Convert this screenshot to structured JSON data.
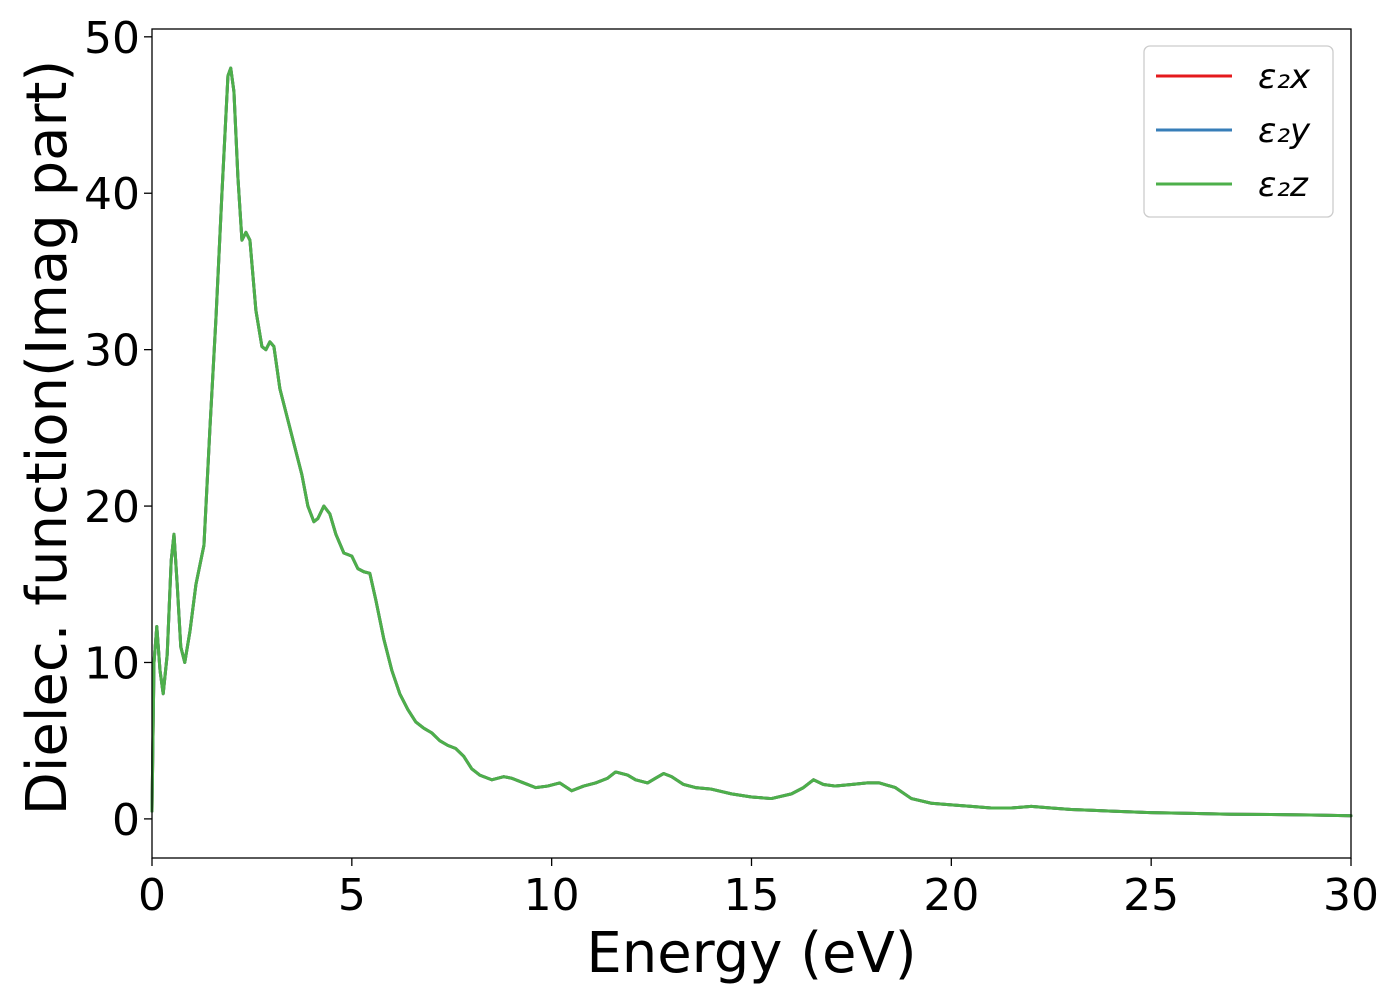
{
  "chart_data": {
    "type": "line",
    "title": "",
    "xlabel": "Energy (eV)",
    "ylabel": "Dielec. function(Imag part)",
    "xlim": [
      0,
      30
    ],
    "ylim": [
      -2.5,
      50.5
    ],
    "xticks": [
      0,
      5,
      10,
      15,
      20,
      25,
      30
    ],
    "yticks": [
      0,
      10,
      20,
      30,
      40,
      50
    ],
    "grid": false,
    "legend_position": "top-right",
    "series": [
      {
        "name": "ε₂x",
        "color": "#e41a1c",
        "points": "shared"
      },
      {
        "name": "ε₂y",
        "color": "#377eb8",
        "points": "shared"
      },
      {
        "name": "ε₂z",
        "color": "#4daf4a",
        "points": "shared"
      }
    ],
    "points": [
      [
        0.0,
        0.5
      ],
      [
        0.05,
        10.0
      ],
      [
        0.12,
        12.3
      ],
      [
        0.2,
        9.5
      ],
      [
        0.28,
        8.0
      ],
      [
        0.38,
        10.5
      ],
      [
        0.48,
        16.5
      ],
      [
        0.55,
        18.2
      ],
      [
        0.63,
        15.0
      ],
      [
        0.72,
        11.0
      ],
      [
        0.82,
        10.0
      ],
      [
        0.95,
        12.0
      ],
      [
        1.1,
        15.0
      ],
      [
        1.3,
        17.5
      ],
      [
        1.45,
        25.0
      ],
      [
        1.6,
        32.0
      ],
      [
        1.75,
        40.0
      ],
      [
        1.9,
        47.5
      ],
      [
        1.97,
        48.0
      ],
      [
        2.05,
        46.5
      ],
      [
        2.15,
        41.0
      ],
      [
        2.25,
        37.0
      ],
      [
        2.35,
        37.5
      ],
      [
        2.45,
        37.0
      ],
      [
        2.6,
        32.5
      ],
      [
        2.75,
        30.2
      ],
      [
        2.85,
        30.0
      ],
      [
        2.95,
        30.5
      ],
      [
        3.05,
        30.2
      ],
      [
        3.2,
        27.5
      ],
      [
        3.35,
        26.0
      ],
      [
        3.55,
        24.0
      ],
      [
        3.75,
        22.0
      ],
      [
        3.9,
        20.0
      ],
      [
        4.05,
        19.0
      ],
      [
        4.15,
        19.2
      ],
      [
        4.3,
        20.0
      ],
      [
        4.45,
        19.5
      ],
      [
        4.6,
        18.2
      ],
      [
        4.8,
        17.0
      ],
      [
        5.0,
        16.8
      ],
      [
        5.15,
        16.0
      ],
      [
        5.3,
        15.8
      ],
      [
        5.45,
        15.7
      ],
      [
        5.6,
        14.0
      ],
      [
        5.8,
        11.5
      ],
      [
        6.0,
        9.5
      ],
      [
        6.2,
        8.0
      ],
      [
        6.4,
        7.0
      ],
      [
        6.6,
        6.2
      ],
      [
        6.8,
        5.8
      ],
      [
        7.0,
        5.5
      ],
      [
        7.2,
        5.0
      ],
      [
        7.4,
        4.7
      ],
      [
        7.6,
        4.5
      ],
      [
        7.8,
        4.0
      ],
      [
        8.0,
        3.2
      ],
      [
        8.2,
        2.8
      ],
      [
        8.5,
        2.5
      ],
      [
        8.8,
        2.7
      ],
      [
        9.0,
        2.6
      ],
      [
        9.3,
        2.3
      ],
      [
        9.6,
        2.0
      ],
      [
        9.9,
        2.1
      ],
      [
        10.2,
        2.3
      ],
      [
        10.5,
        1.8
      ],
      [
        10.8,
        2.1
      ],
      [
        11.1,
        2.3
      ],
      [
        11.4,
        2.6
      ],
      [
        11.6,
        3.0
      ],
      [
        11.9,
        2.8
      ],
      [
        12.1,
        2.5
      ],
      [
        12.4,
        2.3
      ],
      [
        12.6,
        2.6
      ],
      [
        12.8,
        2.9
      ],
      [
        13.0,
        2.7
      ],
      [
        13.3,
        2.2
      ],
      [
        13.6,
        2.0
      ],
      [
        14.0,
        1.9
      ],
      [
        14.5,
        1.6
      ],
      [
        15.0,
        1.4
      ],
      [
        15.5,
        1.3
      ],
      [
        16.0,
        1.6
      ],
      [
        16.3,
        2.0
      ],
      [
        16.55,
        2.5
      ],
      [
        16.8,
        2.2
      ],
      [
        17.1,
        2.1
      ],
      [
        17.5,
        2.2
      ],
      [
        17.9,
        2.3
      ],
      [
        18.2,
        2.3
      ],
      [
        18.6,
        2.0
      ],
      [
        19.0,
        1.3
      ],
      [
        19.5,
        1.0
      ],
      [
        20.0,
        0.9
      ],
      [
        20.5,
        0.8
      ],
      [
        21.0,
        0.7
      ],
      [
        21.5,
        0.7
      ],
      [
        22.0,
        0.8
      ],
      [
        22.5,
        0.7
      ],
      [
        23.0,
        0.6
      ],
      [
        23.5,
        0.55
      ],
      [
        24.0,
        0.5
      ],
      [
        25.0,
        0.4
      ],
      [
        26.0,
        0.35
      ],
      [
        27.0,
        0.3
      ],
      [
        28.0,
        0.28
      ],
      [
        29.0,
        0.25
      ],
      [
        30.0,
        0.2
      ]
    ]
  }
}
